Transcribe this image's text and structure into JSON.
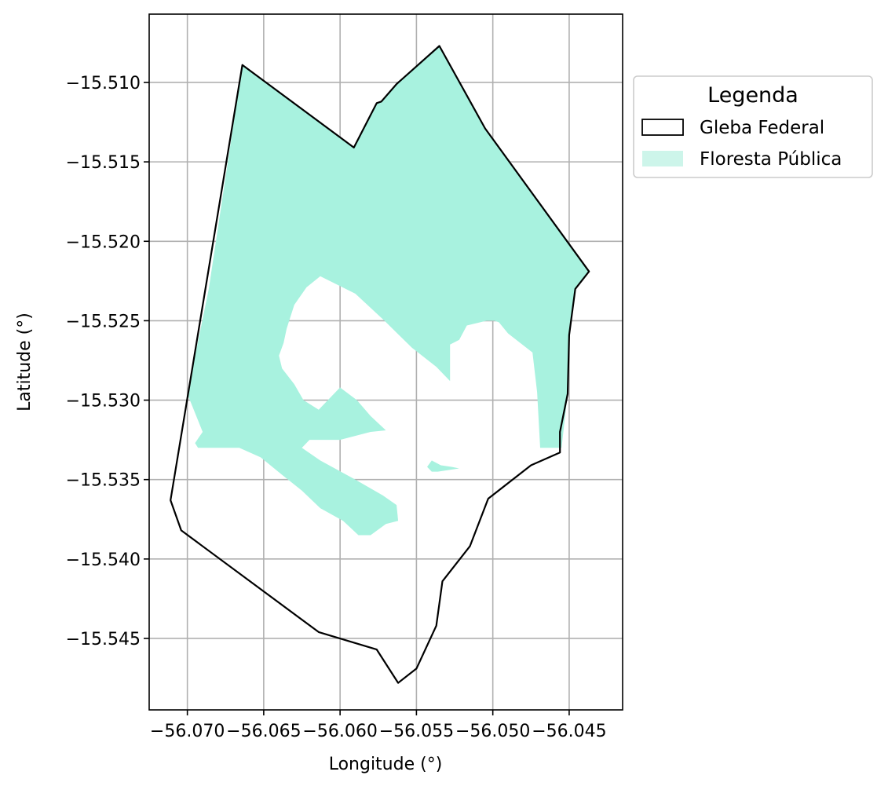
{
  "chart_data": {
    "type": "map",
    "xlabel": "Longitude (°)",
    "ylabel": "Latitude (°)",
    "xlim": [
      -56.0725,
      -56.0415
    ],
    "ylim": [
      -15.5495,
      -15.5057
    ],
    "x_ticks": [
      -56.07,
      -56.065,
      -56.06,
      -56.055,
      -56.05,
      -56.045
    ],
    "x_tick_labels": [
      "−56.070",
      "−56.065",
      "−56.060",
      "−56.055",
      "−56.050",
      "−56.045"
    ],
    "y_ticks": [
      -15.51,
      -15.515,
      -15.52,
      -15.525,
      -15.53,
      -15.535,
      -15.54,
      -15.545
    ],
    "y_tick_labels": [
      "−15.510",
      "−15.515",
      "−15.520",
      "−15.525",
      "−15.530",
      "−15.535",
      "−15.540",
      "−15.545"
    ],
    "grid": true,
    "legend": {
      "title": "Legenda",
      "placement": "outside-right-top",
      "entries": [
        {
          "label": "Gleba Federal",
          "style": "outline",
          "color": "#000000"
        },
        {
          "label": "Floresta Pública",
          "style": "fill",
          "color": "#cdf5ea"
        }
      ]
    },
    "colors": {
      "gleba_outline": "#000000",
      "floresta_fill": "#a8f2df",
      "grid": "#b0b0b0"
    },
    "layers": [
      {
        "name": "Gleba Federal",
        "geometry": "polygon-outline",
        "coordinates": [
          [
            -56.0664,
            -15.5089
          ],
          [
            -56.0591,
            -15.5141
          ],
          [
            -56.0576,
            -15.5113
          ],
          [
            -56.0573,
            -15.5112
          ],
          [
            -56.0563,
            -15.5101
          ],
          [
            -56.0535,
            -15.5077
          ],
          [
            -56.0505,
            -15.5129
          ],
          [
            -56.0437,
            -15.5219
          ],
          [
            -56.0446,
            -15.523
          ],
          [
            -56.045,
            -15.5259
          ],
          [
            -56.0451,
            -15.5296
          ],
          [
            -56.0456,
            -15.532
          ],
          [
            -56.0456,
            -15.5333
          ],
          [
            -56.0475,
            -15.5341
          ],
          [
            -56.0503,
            -15.5362
          ],
          [
            -56.0515,
            -15.5392
          ],
          [
            -56.0533,
            -15.5414
          ],
          [
            -56.0537,
            -15.5442
          ],
          [
            -56.055,
            -15.5469
          ],
          [
            -56.0562,
            -15.5478
          ],
          [
            -56.0576,
            -15.5457
          ],
          [
            -56.0614,
            -15.5446
          ],
          [
            -56.0704,
            -15.5382
          ],
          [
            -56.0711,
            -15.5363
          ],
          [
            -56.0664,
            -15.5089
          ]
        ]
      },
      {
        "name": "Floresta Pública",
        "geometry": "polygon-fill",
        "coordinates": [
          [
            -56.0664,
            -15.5089
          ],
          [
            -56.0591,
            -15.5141
          ],
          [
            -56.0576,
            -15.5113
          ],
          [
            -56.0573,
            -15.5112
          ],
          [
            -56.0563,
            -15.5101
          ],
          [
            -56.0535,
            -15.5077
          ],
          [
            -56.0505,
            -15.5129
          ],
          [
            -56.0437,
            -15.5219
          ],
          [
            -56.0446,
            -15.523
          ],
          [
            -56.045,
            -15.5259
          ],
          [
            -56.0451,
            -15.5296
          ],
          [
            -56.0455,
            -15.533
          ],
          [
            -56.0469,
            -15.533
          ],
          [
            -56.0471,
            -15.5295
          ],
          [
            -56.0474,
            -15.527
          ],
          [
            -56.049,
            -15.5258
          ],
          [
            -56.0496,
            -15.5251
          ],
          [
            -56.0499,
            -15.525
          ],
          [
            -56.0504,
            -15.525
          ],
          [
            -56.0517,
            -15.5253
          ],
          [
            -56.0522,
            -15.5262
          ],
          [
            -56.0528,
            -15.5265
          ],
          [
            -56.0528,
            -15.5288
          ],
          [
            -56.0537,
            -15.5279
          ],
          [
            -56.0553,
            -15.5267
          ],
          [
            -56.0571,
            -15.525
          ],
          [
            -56.059,
            -15.5233
          ],
          [
            -56.0613,
            -15.5222
          ],
          [
            -56.0622,
            -15.5229
          ],
          [
            -56.063,
            -15.524
          ],
          [
            -56.0635,
            -15.5255
          ],
          [
            -56.0637,
            -15.5264
          ],
          [
            -56.064,
            -15.5272
          ],
          [
            -56.0638,
            -15.528
          ],
          [
            -56.063,
            -15.529
          ],
          [
            -56.0624,
            -15.53
          ],
          [
            -56.0614,
            -15.5306
          ],
          [
            -56.06,
            -15.5292
          ],
          [
            -56.0589,
            -15.53
          ],
          [
            -56.058,
            -15.531
          ],
          [
            -56.057,
            -15.5319
          ],
          [
            -56.058,
            -15.532
          ],
          [
            -56.06,
            -15.5325
          ],
          [
            -56.062,
            -15.5325
          ],
          [
            -56.0625,
            -15.533
          ],
          [
            -56.0613,
            -15.5338
          ],
          [
            -56.059,
            -15.535
          ],
          [
            -56.0572,
            -15.536
          ],
          [
            -56.0563,
            -15.5366
          ],
          [
            -56.0562,
            -15.5376
          ],
          [
            -56.057,
            -15.5378
          ],
          [
            -56.058,
            -15.5385
          ],
          [
            -56.0588,
            -15.5385
          ],
          [
            -56.0598,
            -15.5376
          ],
          [
            -56.0613,
            -15.5368
          ],
          [
            -56.0625,
            -15.5357
          ],
          [
            -56.0638,
            -15.5347
          ],
          [
            -56.0652,
            -15.5336
          ],
          [
            -56.0666,
            -15.533
          ],
          [
            -56.068,
            -15.533
          ],
          [
            -56.0693,
            -15.533
          ],
          [
            -56.0695,
            -15.5327
          ],
          [
            -56.069,
            -15.532
          ],
          [
            -56.07,
            -15.5296
          ],
          [
            -56.0686,
            -15.523
          ],
          [
            -56.0664,
            -15.5089
          ]
        ]
      },
      {
        "name": "Floresta Pública",
        "geometry": "polygon-fill",
        "coordinates": [
          [
            -56.054,
            -15.5345
          ],
          [
            -56.0543,
            -15.5342
          ],
          [
            -56.054,
            -15.5338
          ],
          [
            -56.0534,
            -15.5341
          ],
          [
            -56.0527,
            -15.5342
          ],
          [
            -56.0522,
            -15.5343
          ],
          [
            -56.0536,
            -15.5345
          ],
          [
            -56.054,
            -15.5345
          ]
        ]
      }
    ]
  }
}
